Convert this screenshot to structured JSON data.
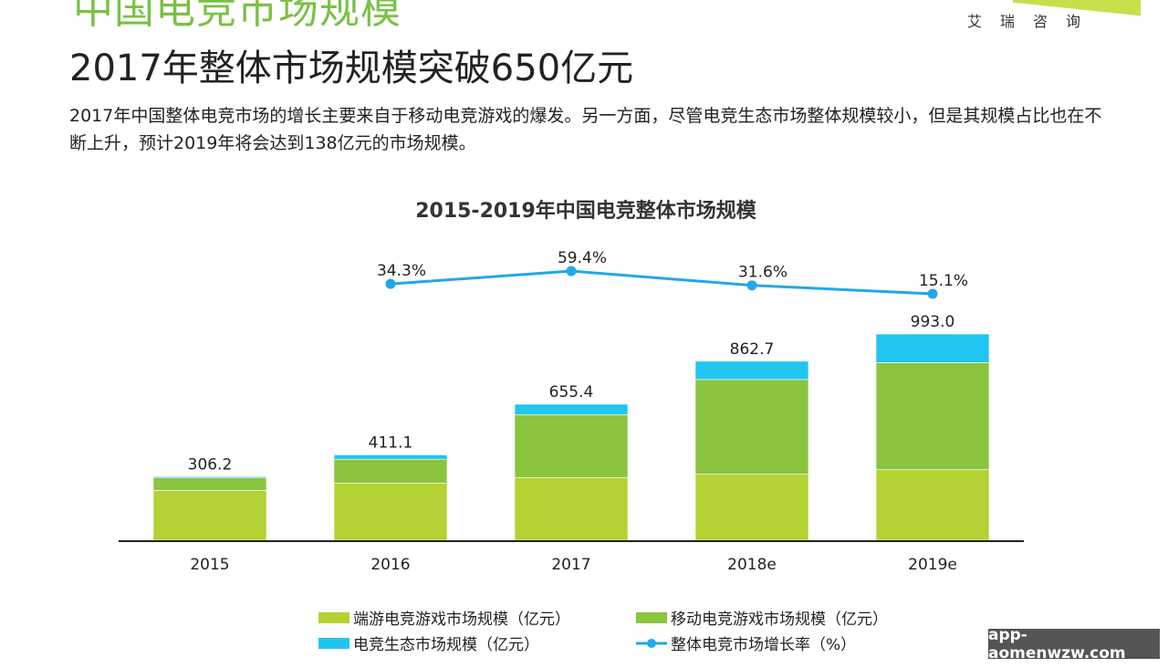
{
  "header": {
    "section_title": "中国电竞市场规模",
    "logo_text": "艾瑞咨询",
    "headline": "2017年整体市场规模突破650亿元",
    "description": "2017年中国整体电竞市场的增长主要来自于移动电竞游戏的爆发。另一方面，尽管电竞生态市场整体规模较小，但是其规模占比也在不断上升，预计2019年将会达到138亿元的市场规模。"
  },
  "chart_data": {
    "type": "bar",
    "stacked": true,
    "title": "2015-2019年中国电竞整体市场规模",
    "categories": [
      "2015",
      "2016",
      "2017",
      "2018e",
      "2019e"
    ],
    "series": [
      {
        "name": "端游电竞游戏市场规模（亿元）",
        "color": "#b3d234",
        "values": [
          240,
          275,
          302,
          318,
          340
        ]
      },
      {
        "name": "移动电竞游戏市场规模（亿元）",
        "color": "#8bc43f",
        "values": [
          60,
          115,
          303,
          456,
          515
        ]
      },
      {
        "name": "电竞生态市场规模（亿元）",
        "color": "#21c6f0",
        "values": [
          6,
          21,
          50,
          88,
          138
        ]
      }
    ],
    "totals": [
      "306.2",
      "411.1",
      "655.4",
      "862.7",
      "993.0"
    ],
    "line": {
      "name": "整体电竞市场增长率（%）",
      "color": "#21a8e8",
      "values": [
        null,
        34.3,
        59.4,
        31.6,
        15.1
      ],
      "labels": [
        "",
        "34.3%",
        "59.4%",
        "31.6%",
        "15.1%"
      ]
    },
    "ylim": [
      0,
      1000
    ],
    "grid": false,
    "legend_position": "bottom"
  },
  "watermark": "app-aomenwzw.com"
}
